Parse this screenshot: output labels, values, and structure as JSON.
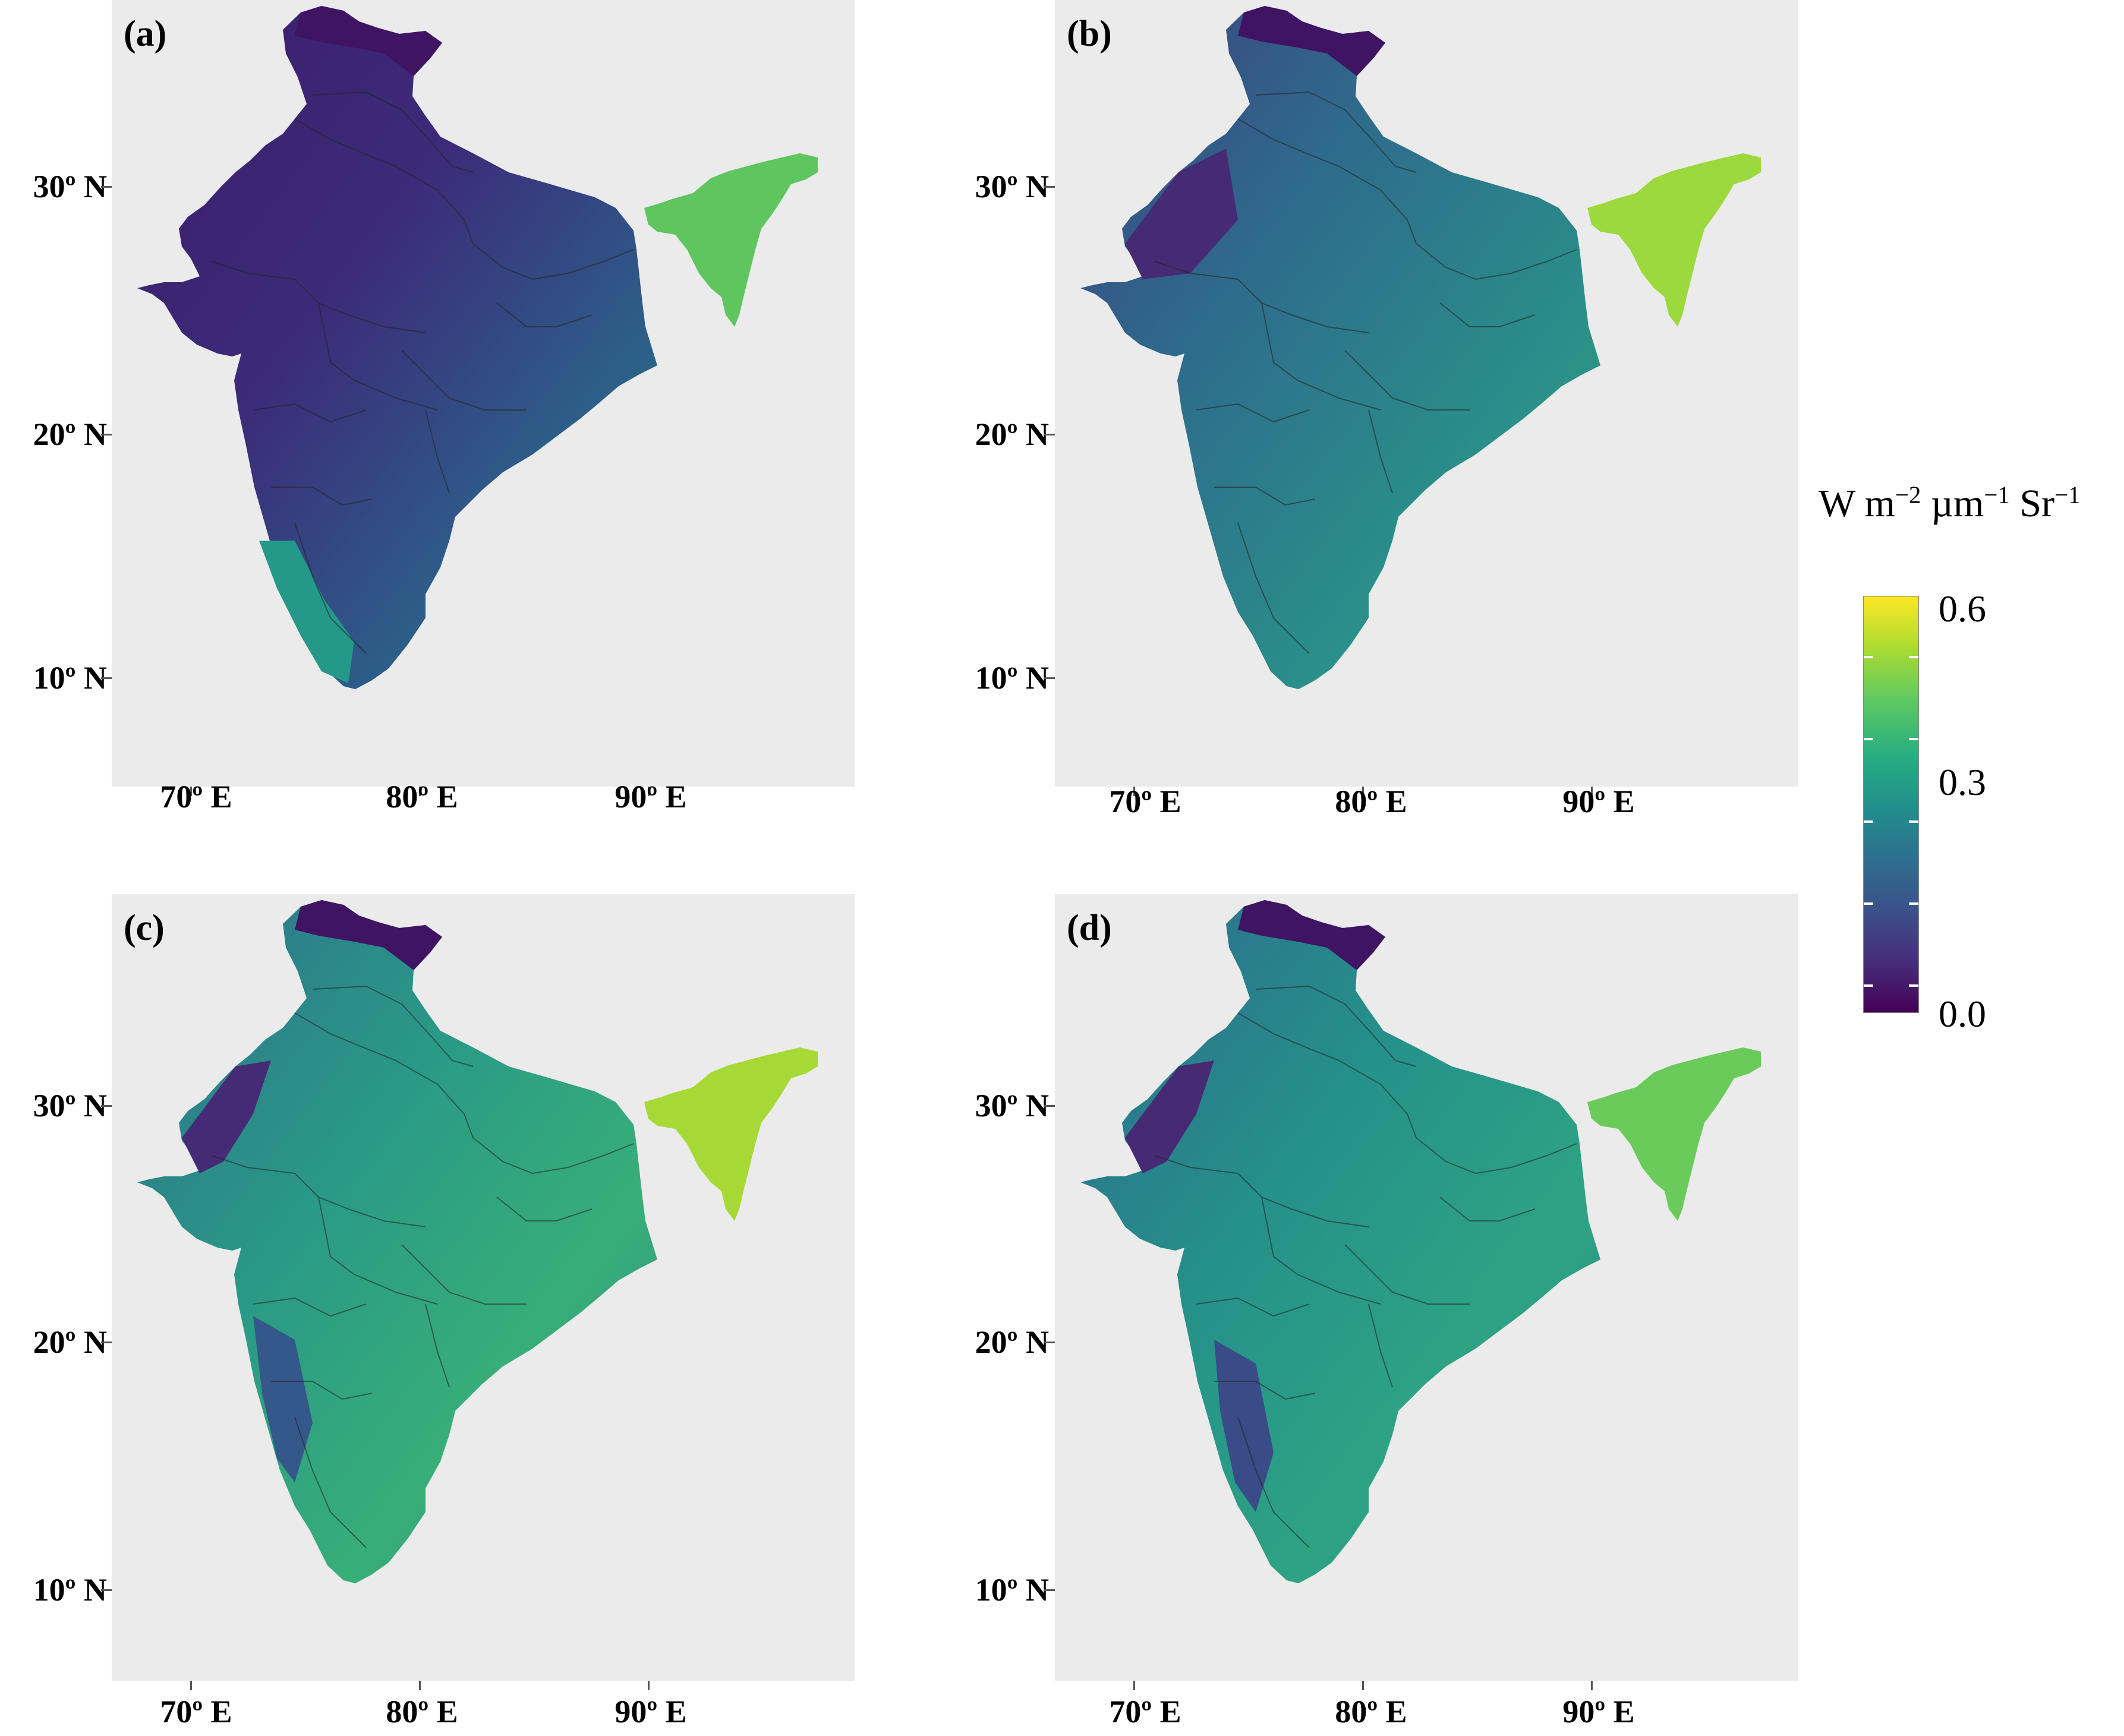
{
  "panels": [
    {
      "label": "(a)"
    },
    {
      "label": "(b)"
    },
    {
      "label": "(c)"
    },
    {
      "label": "(d)"
    }
  ],
  "axes": {
    "lat_labels": [
      "30º N",
      "20º N",
      "10º N"
    ],
    "lon_labels": [
      "70º E",
      "80º E",
      "90º E"
    ]
  },
  "legend": {
    "unit_base": "W m",
    "unit_exp1": "−2",
    "unit_mid": " µm",
    "unit_exp2": "−1",
    "unit_end": " Sr",
    "unit_exp3": "−1",
    "ticks": [
      "0.6",
      "0.3",
      "0.0"
    ],
    "colors": [
      "#440154",
      "#3b528b",
      "#21918c",
      "#5ec962",
      "#fde725"
    ]
  },
  "chart_data": {
    "type": "heatmap",
    "lat_ticks": [
      30,
      20,
      10
    ],
    "lon_ticks": [
      70,
      80,
      90
    ],
    "color_range": [
      0.0,
      0.6
    ],
    "grid": true,
    "legend_position": "right"
  }
}
